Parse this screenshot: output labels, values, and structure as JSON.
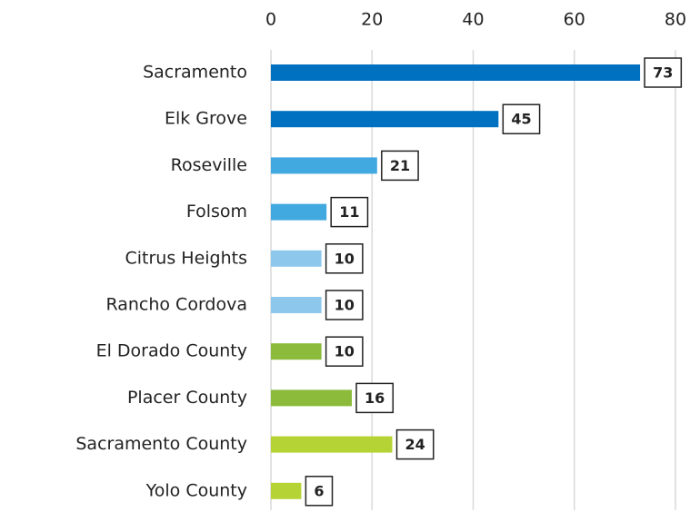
{
  "chart_data": {
    "type": "bar",
    "categories": [
      "Sacramento",
      "Elk Grove",
      "Roseville",
      "Folsom",
      "Citrus Heights",
      "Rancho Cordova",
      "El Dorado County",
      "Placer County",
      "Sacramento County",
      "Yolo County"
    ],
    "values": [
      73,
      45,
      21,
      11,
      10,
      10,
      10,
      16,
      24,
      6
    ],
    "colors": [
      "#0070c0",
      "#0070c0",
      "#41a8e0",
      "#41a8e0",
      "#8dc8ec",
      "#8dc8ec",
      "#8cbb3c",
      "#8cbb3c",
      "#b5d334",
      "#b5d334"
    ],
    "xlim": [
      0,
      80
    ],
    "xticks": [
      0,
      20,
      40,
      60,
      80
    ],
    "grid": true
  }
}
